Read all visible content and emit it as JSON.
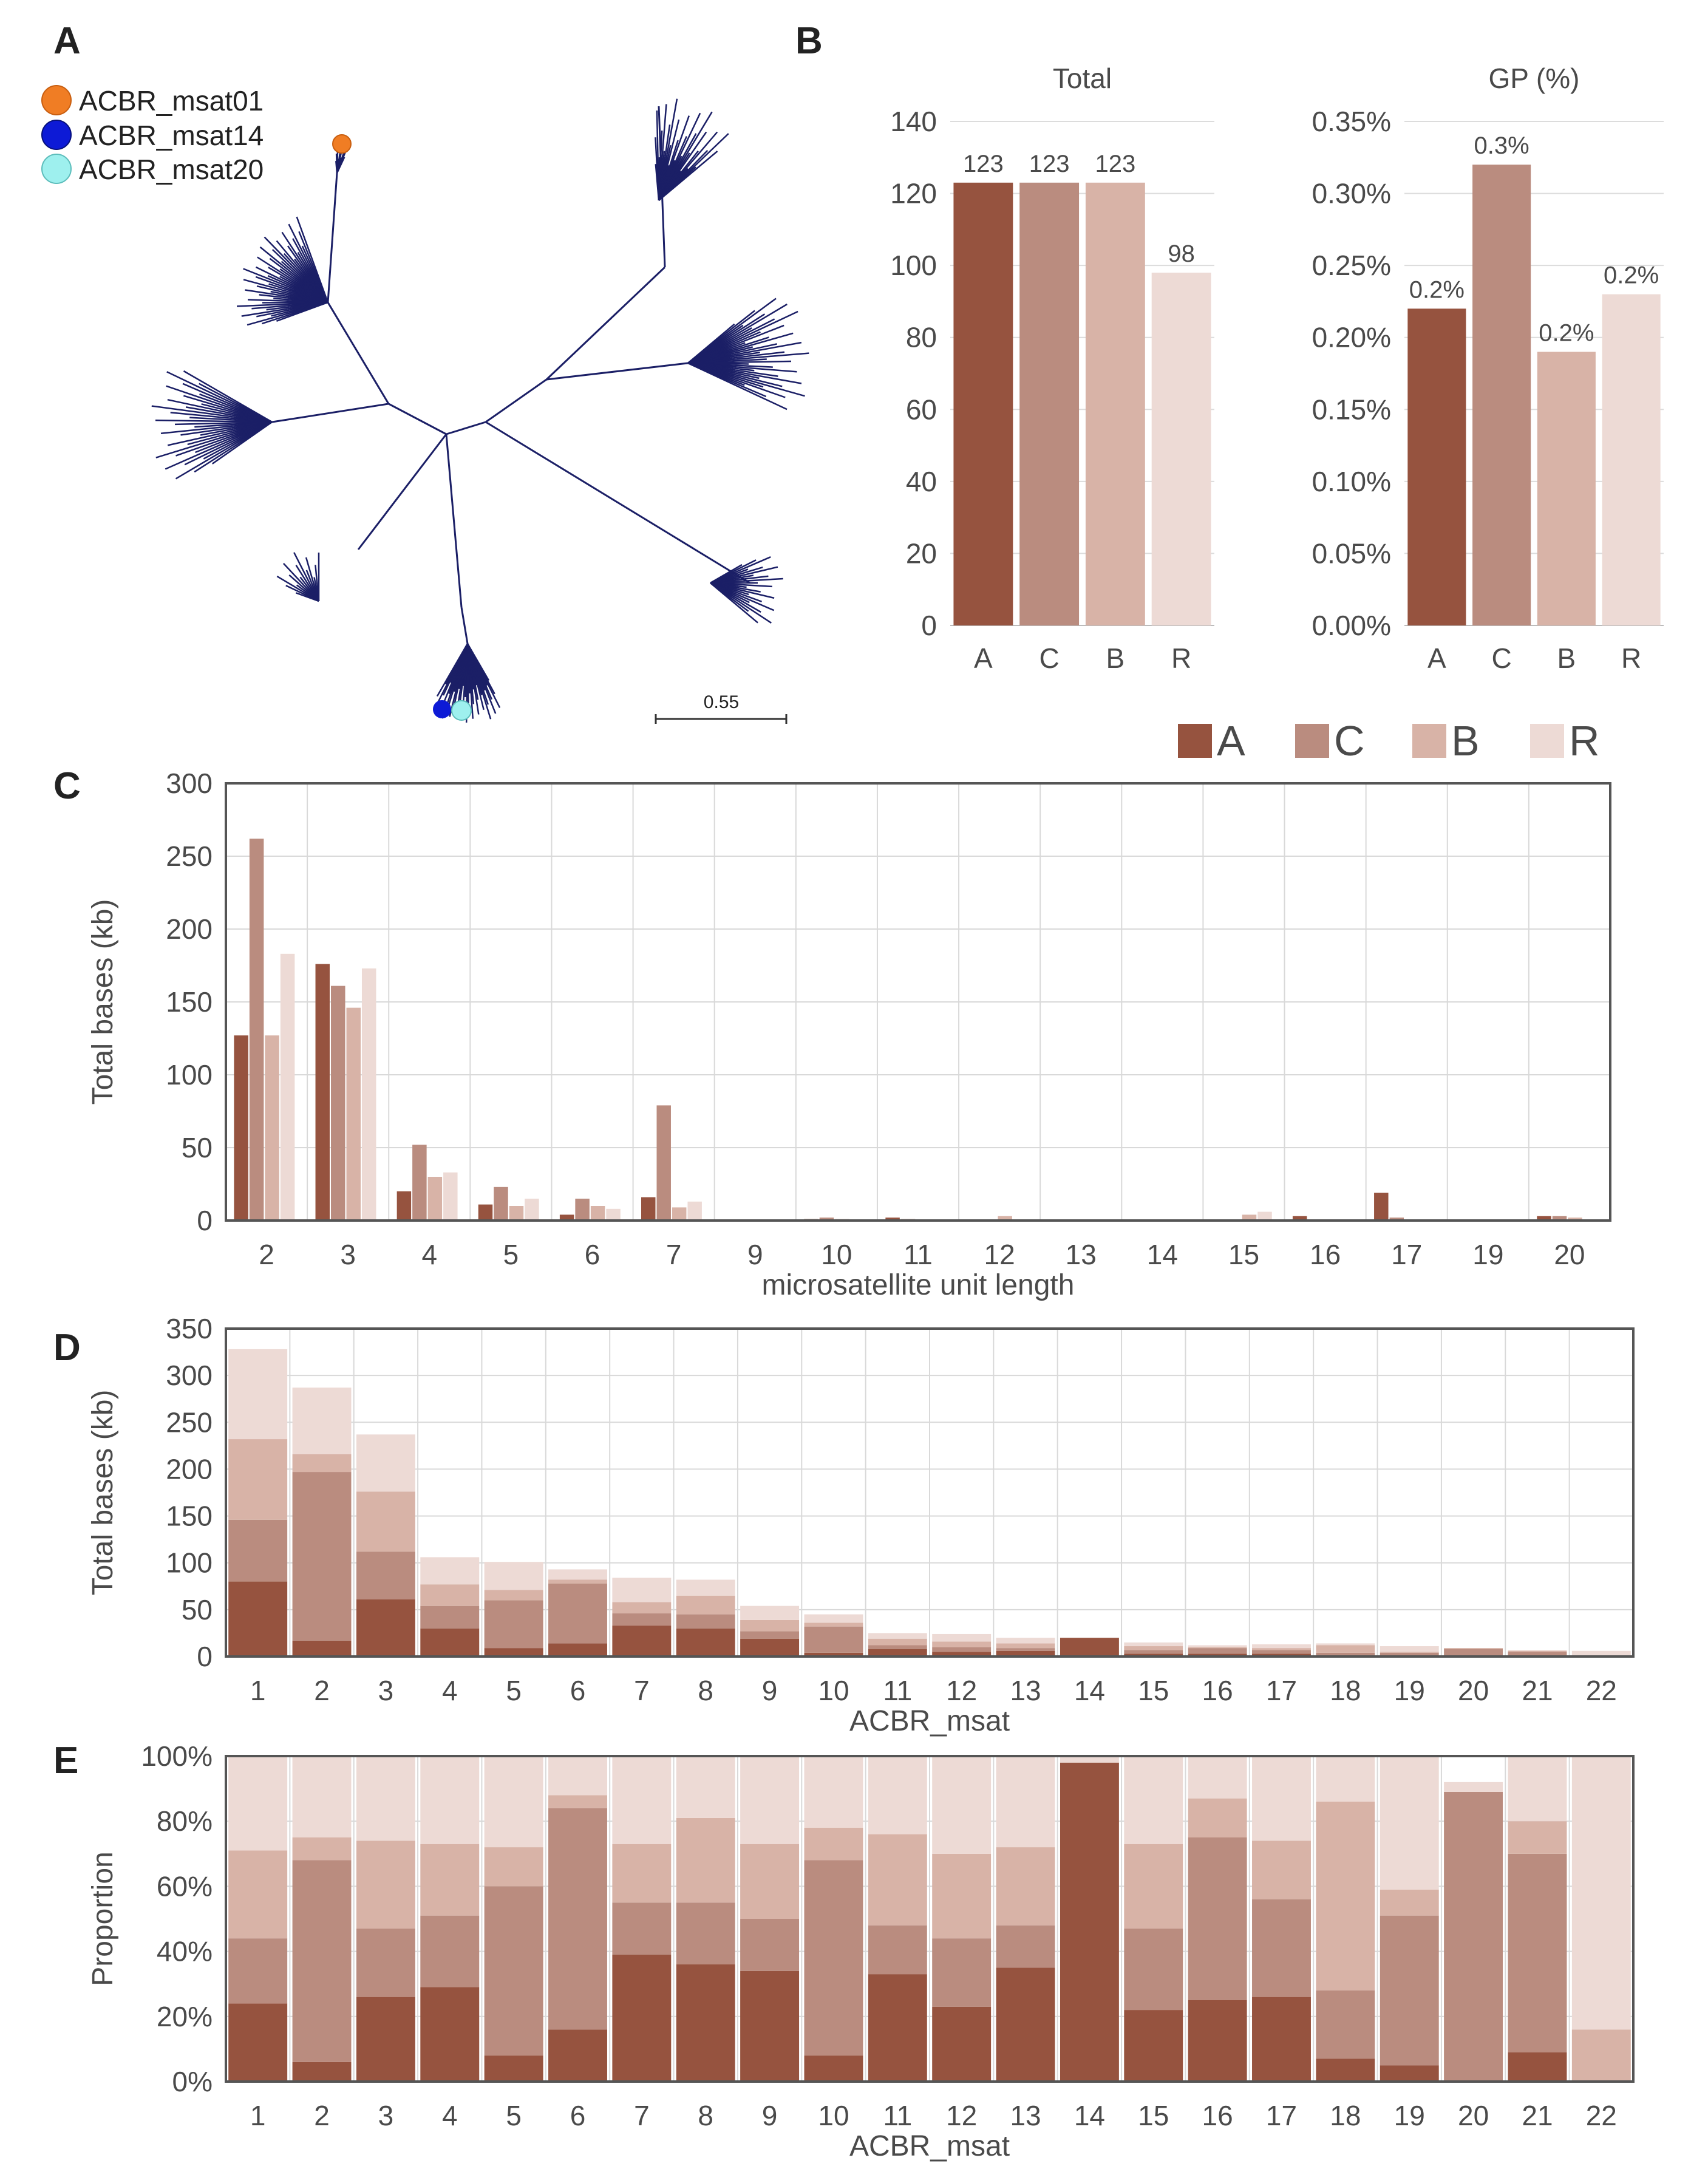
{
  "colors": {
    "A": "#96533F",
    "C": "#BA8C7F",
    "B": "#D8B3A7",
    "R": "#EDDAD5",
    "tree": "#1b1f66",
    "msat01": "#F07D24",
    "msat14": "#0d1ad6",
    "msat20": "#9ef0ee",
    "grid": "#d9d9d9",
    "text": "#4a4a4a"
  },
  "panel_labels": {
    "a": "A",
    "b": "B",
    "c": "C",
    "d": "D",
    "e": "E"
  },
  "legend_a": [
    {
      "key": "msat01",
      "label": "ACBR_msat01"
    },
    {
      "key": "msat14",
      "label": "ACBR_msat14"
    },
    {
      "key": "msat20",
      "label": "ACBR_msat20"
    }
  ],
  "scale_bar_label": "0.55",
  "legend_main": [
    "A",
    "C",
    "B",
    "R"
  ],
  "chart_data": [
    {
      "id": "b_total",
      "type": "bar",
      "title": "Total",
      "categories": [
        "A",
        "C",
        "B",
        "R"
      ],
      "values": [
        123,
        123,
        123,
        98
      ],
      "value_labels": [
        "123",
        "123",
        "123",
        "98"
      ],
      "ylim": [
        0,
        140
      ],
      "yticks": [
        "0",
        "20",
        "40",
        "60",
        "80",
        "100",
        "120",
        "140"
      ]
    },
    {
      "id": "b_gp",
      "type": "bar",
      "title": "GP (%)",
      "categories": [
        "A",
        "C",
        "B",
        "R"
      ],
      "values": [
        0.22,
        0.32,
        0.19,
        0.23
      ],
      "value_labels": [
        "0.2%",
        "0.3%",
        "0.2%",
        "0.2%"
      ],
      "ylim": [
        0,
        0.35
      ],
      "yticks": [
        "0.00%",
        "0.05%",
        "0.10%",
        "0.15%",
        "0.20%",
        "0.25%",
        "0.30%",
        "0.35%"
      ]
    },
    {
      "id": "c",
      "type": "bar",
      "xlabel": "microsatellite unit length",
      "ylabel": "Total bases (kb)",
      "categories": [
        "2",
        "3",
        "4",
        "5",
        "6",
        "7",
        "9",
        "10",
        "11",
        "12",
        "13",
        "14",
        "15",
        "16",
        "17",
        "19",
        "20"
      ],
      "ylim": [
        0,
        300
      ],
      "yticks": [
        "0",
        "50",
        "100",
        "150",
        "200",
        "250",
        "300"
      ],
      "series": [
        {
          "name": "A",
          "values": [
            127,
            176,
            20,
            11,
            4,
            16,
            0,
            1,
            2,
            0,
            0,
            0,
            0,
            3,
            19,
            0,
            3
          ]
        },
        {
          "name": "C",
          "values": [
            262,
            161,
            52,
            23,
            15,
            79,
            0,
            2,
            1,
            0,
            0,
            0,
            0,
            0,
            2,
            0,
            3
          ]
        },
        {
          "name": "B",
          "values": [
            127,
            146,
            30,
            10,
            10,
            9,
            0,
            1,
            0,
            3,
            0,
            0,
            4,
            0,
            0,
            0,
            2
          ]
        },
        {
          "name": "R",
          "values": [
            183,
            173,
            33,
            15,
            8,
            13,
            0,
            0,
            0,
            0,
            0,
            0,
            6,
            0,
            0,
            0,
            0
          ]
        }
      ]
    },
    {
      "id": "d",
      "type": "bar",
      "stacked": true,
      "xlabel": "ACBR_msat",
      "ylabel": "Total bases (kb)",
      "categories": [
        "1",
        "2",
        "3",
        "4",
        "5",
        "6",
        "7",
        "8",
        "9",
        "10",
        "11",
        "12",
        "13",
        "14",
        "15",
        "16",
        "17",
        "18",
        "19",
        "20",
        "21",
        "22"
      ],
      "ylim": [
        0,
        350
      ],
      "yticks": [
        "0",
        "50",
        "100",
        "150",
        "200",
        "250",
        "300",
        "350"
      ],
      "series": [
        {
          "name": "A",
          "values": [
            80,
            17,
            61,
            30,
            9,
            14,
            33,
            30,
            19,
            4,
            8,
            5,
            6,
            20,
            3,
            3,
            3,
            1,
            1,
            0,
            1,
            0
          ]
        },
        {
          "name": "C",
          "values": [
            66,
            180,
            51,
            24,
            51,
            64,
            13,
            15,
            8,
            28,
            4,
            5,
            3,
            0,
            4,
            6,
            4,
            3,
            3,
            8,
            4,
            0
          ]
        },
        {
          "name": "B",
          "values": [
            86,
            19,
            64,
            23,
            11,
            4,
            12,
            20,
            12,
            4,
            7,
            6,
            5,
            0,
            4,
            1,
            2,
            8,
            1,
            1,
            1,
            1
          ]
        },
        {
          "name": "R",
          "values": [
            96,
            71,
            61,
            29,
            30,
            11,
            26,
            17,
            15,
            9,
            6,
            8,
            6,
            0,
            4,
            2,
            4,
            2,
            6,
            0,
            1,
            5
          ]
        }
      ]
    },
    {
      "id": "e",
      "type": "bar",
      "stacked": true,
      "xlabel": "ACBR_msat",
      "ylabel": "Proportion",
      "categories": [
        "1",
        "2",
        "3",
        "4",
        "5",
        "6",
        "7",
        "8",
        "9",
        "10",
        "11",
        "12",
        "13",
        "14",
        "15",
        "16",
        "17",
        "18",
        "19",
        "20",
        "21",
        "22"
      ],
      "ylim": [
        0,
        100
      ],
      "yticks": [
        "0%",
        "20%",
        "40%",
        "60%",
        "80%",
        "100%"
      ],
      "series": [
        {
          "name": "A",
          "values": [
            24,
            6,
            26,
            29,
            8,
            16,
            39,
            36,
            34,
            8,
            33,
            23,
            35,
            98,
            22,
            25,
            26,
            7,
            5,
            0,
            9,
            0
          ]
        },
        {
          "name": "C",
          "values": [
            20,
            62,
            21,
            22,
            52,
            68,
            16,
            19,
            16,
            60,
            15,
            21,
            13,
            0,
            25,
            50,
            30,
            21,
            46,
            89,
            61,
            0
          ]
        },
        {
          "name": "B",
          "values": [
            27,
            7,
            27,
            22,
            12,
            4,
            18,
            26,
            23,
            10,
            28,
            26,
            24,
            0,
            26,
            12,
            18,
            58,
            8,
            0,
            10,
            16
          ]
        },
        {
          "name": "R",
          "values": [
            29,
            25,
            26,
            27,
            28,
            12,
            27,
            19,
            27,
            22,
            24,
            30,
            28,
            2,
            27,
            13,
            26,
            14,
            41,
            3,
            20,
            84
          ]
        }
      ]
    }
  ]
}
